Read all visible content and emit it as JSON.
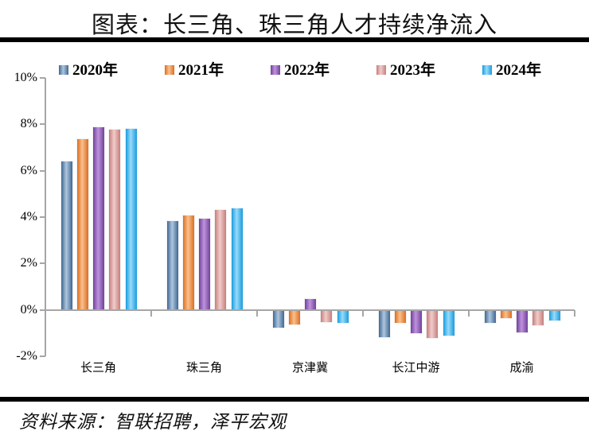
{
  "title": "图表：长三角、珠三角人才持续净流入",
  "source": "资料来源：智联招聘，泽平宏观",
  "chart_data": {
    "type": "bar",
    "title": "图表：长三角、珠三角人才持续净流入",
    "categories": [
      "长三角",
      "珠三角",
      "京津冀",
      "长江中游",
      "成渝"
    ],
    "series": [
      {
        "name": "2020年",
        "color": "#4F81BD",
        "edge": "#3E6894",
        "light": "#AFC6DD",
        "values": [
          6.45,
          3.85,
          -0.8,
          -1.2,
          -0.6
        ]
      },
      {
        "name": "2021年",
        "color": "#F0873C",
        "edge": "#DC6E1F",
        "light": "#FAC08E",
        "values": [
          7.4,
          4.1,
          -0.65,
          -0.6,
          -0.4
        ]
      },
      {
        "name": "2022年",
        "color": "#8C58B0",
        "edge": "#71419B",
        "light": "#BE93DC",
        "values": [
          7.9,
          3.95,
          0.5,
          -1.05,
          -1.0
        ]
      },
      {
        "name": "2023年",
        "color": "#D99694",
        "edge": "#C67E7C",
        "light": "#F0CCCA",
        "values": [
          7.8,
          4.35,
          -0.55,
          -1.25,
          -0.7
        ]
      },
      {
        "name": "2024年",
        "color": "#3FB3EE",
        "edge": "#199CDF",
        "light": "#97DBFA",
        "values": [
          7.85,
          4.4,
          -0.6,
          -1.15,
          -0.5
        ]
      }
    ],
    "ylim": [
      -2,
      10
    ],
    "yticks": [
      {
        "label": "10%",
        "value": 10
      },
      {
        "label": "8%",
        "value": 8
      },
      {
        "label": "6%",
        "value": 6
      },
      {
        "label": "4%",
        "value": 4
      },
      {
        "label": "2%",
        "value": 2
      },
      {
        "label": "0%",
        "value": 0
      },
      {
        "label": "-2%",
        "value": -2
      }
    ],
    "grid": false,
    "legend_position": "top",
    "axis_color": "#A6A6A6"
  }
}
